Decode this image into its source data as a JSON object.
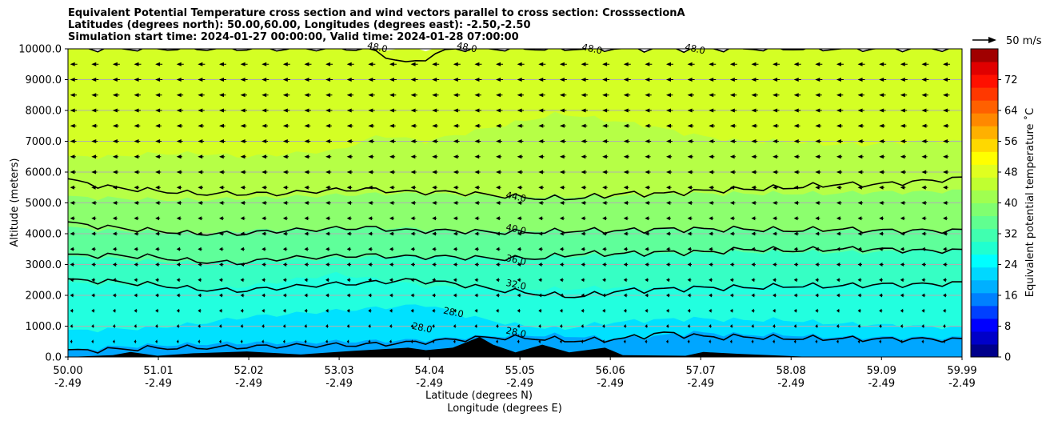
{
  "title": {
    "line1": "Equivalent Potential Temperature cross section and wind vectors parallel to cross section: CrosssectionA",
    "line2": "Latitudes (degrees north): 50.00,60.00, Longitudes (degrees east): -2.50,-2.50",
    "line3": "Simulation start time: 2024-01-27 00:00:00, Valid time: 2024-01-28 07:00:00"
  },
  "chart_data": {
    "type": "contour",
    "variable": "Equivalent potential temperature",
    "ylabel": "Altitude (meters)",
    "xlabel_line1": "Latitude (degrees N)",
    "xlabel_line2": "Longitude (degrees E)",
    "ylim": [
      0,
      10000
    ],
    "xlim": [
      50.0,
      59.99
    ],
    "y_ticks": [
      "0.0",
      "1000.0",
      "2000.0",
      "3000.0",
      "4000.0",
      "5000.0",
      "6000.0",
      "7000.0",
      "8000.0",
      "9000.0",
      "10000.0"
    ],
    "y_tick_values": [
      0,
      1000,
      2000,
      3000,
      4000,
      5000,
      6000,
      7000,
      8000,
      9000,
      10000
    ],
    "x_tick_values": [
      50.0,
      51.01,
      52.02,
      53.03,
      54.04,
      55.05,
      56.06,
      57.07,
      58.08,
      59.09,
      59.99
    ],
    "x_ticks_lat": [
      "50.00",
      "51.01",
      "52.02",
      "53.03",
      "54.04",
      "55.05",
      "56.06",
      "57.07",
      "58.08",
      "59.09",
      "59.99"
    ],
    "x_ticks_lon": [
      "-2.49",
      "-2.49",
      "-2.49",
      "-2.49",
      "-2.49",
      "-2.49",
      "-2.49",
      "-2.49",
      "-2.49",
      "-2.49",
      "-2.49"
    ],
    "grid": true,
    "colorbar": {
      "label": "Equivalent potential temperature ˚C",
      "range": [
        0,
        80
      ],
      "ticks": [
        0,
        8,
        16,
        24,
        32,
        40,
        48,
        56,
        64,
        72
      ],
      "tick_labels": [
        "0",
        "8",
        "16",
        "24",
        "32",
        "40",
        "48",
        "56",
        "64",
        "72"
      ],
      "colors": [
        "#00008b",
        "#0000c8",
        "#0000ff",
        "#0040ff",
        "#0080ff",
        "#00b0ff",
        "#00d8ff",
        "#00ffff",
        "#20ffd0",
        "#40ffb0",
        "#60ff90",
        "#80ff70",
        "#a0ff50",
        "#c0ff30",
        "#e0ff20",
        "#ffff00",
        "#ffd800",
        "#ffb000",
        "#ff8800",
        "#ff6000",
        "#ff3800",
        "#ff1000",
        "#e00000",
        "#a00000"
      ]
    },
    "fill_bands": [
      {
        "label": "below 24",
        "color": "#00a6ff",
        "top_m": [
          200,
          330,
          380,
          420,
          460,
          470,
          500,
          520,
          560,
          650,
          700,
          700,
          600,
          650,
          800,
          720,
          720,
          650,
          640,
          630,
          620
        ]
      },
      {
        "label": "24-28",
        "color": "#00e1ff",
        "top_m": [
          850,
          900,
          950,
          1100,
          1300,
          1400,
          1500,
          1600,
          1700,
          1300,
          1050,
          900,
          1100,
          1200,
          1250,
          1200,
          1200,
          1100,
          1050,
          1000,
          950
        ]
      },
      {
        "label": "28-32",
        "color": "#22ffdf",
        "top_m": [
          2400,
          2350,
          2300,
          2200,
          2300,
          2500,
          2700,
          2500,
          2300,
          2250,
          2200,
          2200,
          2250,
          2250,
          2300,
          2300,
          2350,
          2350,
          2350,
          2350,
          2350
        ]
      },
      {
        "label": "32-36",
        "color": "#36ffc4",
        "top_m": [
          3250,
          3200,
          3100,
          3050,
          3100,
          3150,
          3200,
          3250,
          3250,
          3200,
          3200,
          3250,
          3300,
          3350,
          3350,
          3400,
          3400,
          3400,
          3400,
          3450,
          3450
        ]
      },
      {
        "label": "36-40",
        "color": "#5fff9a",
        "top_m": [
          4200,
          4100,
          4050,
          4000,
          4100,
          4150,
          4150,
          4200,
          4150,
          4100,
          4100,
          4100,
          4100,
          4150,
          4150,
          4150,
          4100,
          4100,
          4100,
          4100,
          4100
        ]
      },
      {
        "label": "40-44",
        "color": "#8cff6e",
        "top_m": [
          5200,
          5150,
          5100,
          5100,
          5150,
          5200,
          5250,
          5300,
          5300,
          5250,
          5200,
          5200,
          5200,
          5250,
          5300,
          5300,
          5300,
          5300,
          5350,
          5350,
          5400
        ]
      },
      {
        "label": "44-48",
        "color": "#b6ff46",
        "top_m": [
          6500,
          6500,
          6600,
          6600,
          6500,
          6600,
          6700,
          7200,
          7000,
          7300,
          7600,
          7900,
          7700,
          7500,
          7200,
          7000,
          7000,
          6900,
          6900,
          7000,
          7000
        ]
      },
      {
        "label": "48+",
        "color": "#d4ff24",
        "top_m": [
          10000,
          10000,
          10000,
          10000,
          10000,
          10000,
          10000,
          10000,
          10000,
          10000,
          10000,
          10000,
          10000,
          10000,
          10000,
          10000,
          10000,
          10000,
          10000,
          10000,
          10000
        ]
      }
    ],
    "contours": [
      {
        "level": "28.0",
        "heights_m": [
          200,
          240,
          290,
          300,
          320,
          360,
          380,
          400,
          460,
          560,
          640,
          600,
          520,
          590,
          780,
          650,
          650,
          600,
          600,
          580,
          580,
          560
        ]
      },
      {
        "level": "32.0",
        "heights_m": [
          2500,
          2450,
          2350,
          2200,
          2150,
          2250,
          2350,
          2400,
          2500,
          2400,
          2200,
          2050,
          1950,
          2150,
          2200,
          2250,
          2250,
          2300,
          2300,
          2350,
          2350,
          2400
        ]
      },
      {
        "level": "36.0",
        "heights_m": [
          3300,
          3300,
          3250,
          3100,
          3050,
          3200,
          3250,
          3300,
          3250,
          3250,
          3200,
          3200,
          3350,
          3350,
          3400,
          3400,
          3500,
          3450,
          3500,
          3500,
          3450,
          3450
        ]
      },
      {
        "level": "40.0",
        "heights_m": [
          4350,
          4200,
          4100,
          4000,
          4000,
          4100,
          4150,
          4200,
          4100,
          4100,
          4050,
          4050,
          4100,
          4100,
          4150,
          4150,
          4150,
          4100,
          4150,
          4100,
          4100,
          4100
        ]
      },
      {
        "level": "44.0",
        "heights_m": [
          5750,
          5500,
          5400,
          5300,
          5300,
          5300,
          5400,
          5450,
          5350,
          5350,
          5250,
          5150,
          5150,
          5300,
          5300,
          5400,
          5450,
          5500,
          5600,
          5600,
          5700,
          5800
        ]
      },
      {
        "level": "48.0",
        "heights_m": [
          10000,
          10000,
          10000,
          10000,
          10000,
          10000,
          10000,
          10000,
          9500,
          10000,
          10000,
          10000,
          10000,
          10000,
          10000,
          10000,
          10000,
          10000,
          10000,
          10000,
          10000,
          10000
        ]
      }
    ],
    "contour_labels": [
      {
        "text": "44.0",
        "x": 55.0,
        "y": 5100
      },
      {
        "text": "40.0",
        "x": 55.0,
        "y": 4050
      },
      {
        "text": "36.0",
        "x": 55.0,
        "y": 3050
      },
      {
        "text": "32.0",
        "x": 55.0,
        "y": 2250
      },
      {
        "text": "28.0",
        "x": 54.3,
        "y": 1350
      },
      {
        "text": "28.0",
        "x": 53.95,
        "y": 850
      },
      {
        "text": "28.0",
        "x": 55.0,
        "y": 700
      },
      {
        "text": "48.0",
        "x": 53.45,
        "y": 9950
      },
      {
        "text": "48.0",
        "x": 54.45,
        "y": 9950
      },
      {
        "text": "48.0",
        "x": 55.85,
        "y": 9900
      },
      {
        "text": "48.0",
        "x": 57.0,
        "y": 9900
      }
    ],
    "terrain": [
      {
        "x": 50.0,
        "y": 0
      },
      {
        "x": 50.5,
        "y": 60
      },
      {
        "x": 50.7,
        "y": 160
      },
      {
        "x": 51.0,
        "y": 40
      },
      {
        "x": 51.4,
        "y": 120
      },
      {
        "x": 52.0,
        "y": 180
      },
      {
        "x": 52.6,
        "y": 80
      },
      {
        "x": 53.2,
        "y": 200
      },
      {
        "x": 53.8,
        "y": 300
      },
      {
        "x": 54.0,
        "y": 220
      },
      {
        "x": 54.3,
        "y": 300
      },
      {
        "x": 54.6,
        "y": 650
      },
      {
        "x": 54.75,
        "y": 400
      },
      {
        "x": 55.0,
        "y": 150
      },
      {
        "x": 55.3,
        "y": 400
      },
      {
        "x": 55.6,
        "y": 150
      },
      {
        "x": 56.0,
        "y": 300
      },
      {
        "x": 56.2,
        "y": 60
      },
      {
        "x": 56.9,
        "y": 40
      },
      {
        "x": 57.1,
        "y": 160
      },
      {
        "x": 57.5,
        "y": 100
      },
      {
        "x": 58.0,
        "y": 40
      },
      {
        "x": 58.3,
        "y": 0
      }
    ],
    "wind": {
      "reference_label": "50 m/s",
      "reference_speed": 50,
      "direction": "westward",
      "levels_m": [
        500,
        1000,
        1500,
        2000,
        2500,
        3000,
        3500,
        4000,
        4500,
        5000,
        5500,
        6000,
        6500,
        7000,
        7500,
        8000,
        8500,
        9000,
        9500
      ],
      "speeds_ms": [
        4,
        6,
        7,
        8,
        8,
        9,
        9,
        10,
        10,
        11,
        11,
        12,
        12,
        13,
        13,
        14,
        14,
        15,
        15
      ]
    }
  }
}
